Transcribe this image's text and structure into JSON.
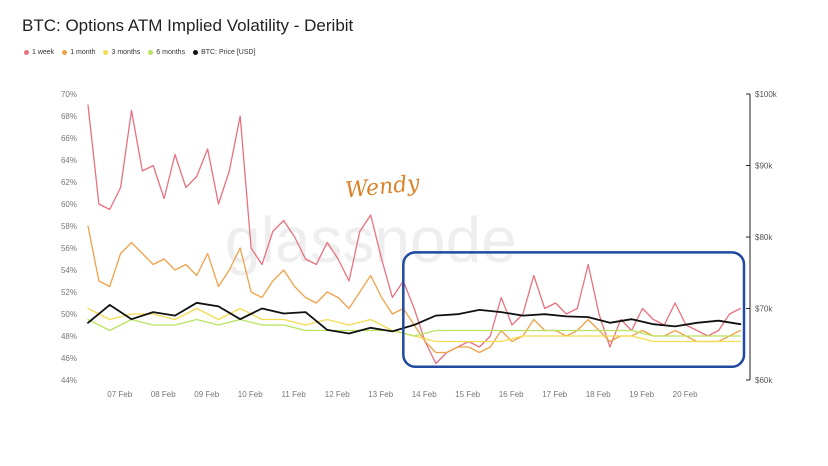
{
  "title": "BTC: Options ATM Implied Volatility - Deribit",
  "watermark": "glassnode",
  "signature": "Wendy",
  "legend": [
    {
      "label": "1 week",
      "color": "#e8717f"
    },
    {
      "label": "1 month",
      "color": "#f0a24b"
    },
    {
      "label": "3 months",
      "color": "#f2dc52"
    },
    {
      "label": "6 months",
      "color": "#b9e35f"
    },
    {
      "label": "BTC: Price [USD]",
      "color": "#111111"
    }
  ],
  "chart_data": {
    "type": "line",
    "x_axis": {
      "type": "date",
      "min": "2024-02-06T12:00",
      "max": "2024-02-21T14:00",
      "tick_labels": [
        "07 Feb",
        "08 Feb",
        "09 Feb",
        "10 Feb",
        "11 Feb",
        "12 Feb",
        "13 Feb",
        "14 Feb",
        "15 Feb",
        "16 Feb",
        "17 Feb",
        "18 Feb",
        "19 Feb",
        "20 Feb"
      ]
    },
    "y_left": {
      "unit": "%",
      "min": 44,
      "max": 70,
      "tick_labels": [
        "44%",
        "46%",
        "48%",
        "50%",
        "52%",
        "54%",
        "56%",
        "58%",
        "60%",
        "62%",
        "64%",
        "66%",
        "68%",
        "70%"
      ]
    },
    "y_right": {
      "unit": "USD",
      "min": 60000,
      "max": 100000,
      "tick_labels": [
        "$60k",
        "$70k",
        "$80k",
        "$90k",
        "$100k"
      ]
    },
    "grid": false,
    "legend_position": "top-left",
    "annotation": {
      "type": "rectangle",
      "color": "#1f4aa0",
      "x_start": "2024-02-13T18:00",
      "x_end": "2024-02-21T14:00",
      "y_start": 45.2,
      "y_end": 55.6
    },
    "series": [
      {
        "name": "1 week",
        "axis": "left",
        "color": "#e8717f",
        "x": [
          "2024-02-06T12:00",
          "2024-02-06T18:00",
          "2024-02-07T00:00",
          "2024-02-07T06:00",
          "2024-02-07T12:00",
          "2024-02-07T18:00",
          "2024-02-08T00:00",
          "2024-02-08T06:00",
          "2024-02-08T12:00",
          "2024-02-08T18:00",
          "2024-02-09T00:00",
          "2024-02-09T06:00",
          "2024-02-09T12:00",
          "2024-02-09T18:00",
          "2024-02-10T00:00",
          "2024-02-10T06:00",
          "2024-02-10T12:00",
          "2024-02-10T18:00",
          "2024-02-11T00:00",
          "2024-02-11T06:00",
          "2024-02-11T12:00",
          "2024-02-11T18:00",
          "2024-02-12T00:00",
          "2024-02-12T06:00",
          "2024-02-12T12:00",
          "2024-02-12T18:00",
          "2024-02-13T00:00",
          "2024-02-13T06:00",
          "2024-02-13T12:00",
          "2024-02-13T18:00",
          "2024-02-14T00:00",
          "2024-02-14T06:00",
          "2024-02-14T12:00",
          "2024-02-14T18:00",
          "2024-02-15T00:00",
          "2024-02-15T06:00",
          "2024-02-15T12:00",
          "2024-02-15T18:00",
          "2024-02-16T00:00",
          "2024-02-16T06:00",
          "2024-02-16T12:00",
          "2024-02-16T18:00",
          "2024-02-17T00:00",
          "2024-02-17T06:00",
          "2024-02-17T12:00",
          "2024-02-17T18:00",
          "2024-02-18T00:00",
          "2024-02-18T06:00",
          "2024-02-18T12:00",
          "2024-02-18T18:00",
          "2024-02-19T00:00",
          "2024-02-19T06:00",
          "2024-02-19T12:00",
          "2024-02-19T18:00",
          "2024-02-20T00:00",
          "2024-02-20T06:00",
          "2024-02-20T12:00",
          "2024-02-20T18:00",
          "2024-02-21T00:00",
          "2024-02-21T06:00",
          "2024-02-21T12:00"
        ],
        "values": [
          69.0,
          60.0,
          59.5,
          61.5,
          68.5,
          63.0,
          63.5,
          60.5,
          64.5,
          61.5,
          62.5,
          65.0,
          60.0,
          63.0,
          68.0,
          56.0,
          54.5,
          57.5,
          58.5,
          57.0,
          55.0,
          54.5,
          56.5,
          55.0,
          53.0,
          57.5,
          59.0,
          55.0,
          51.5,
          53.0,
          50.5,
          47.5,
          45.5,
          46.5,
          47.0,
          47.5,
          47.0,
          48.0,
          51.5,
          49.0,
          50.0,
          53.5,
          50.5,
          51.0,
          50.0,
          50.5,
          54.5,
          50.0,
          47.0,
          49.5,
          48.5,
          50.5,
          49.5,
          49.0,
          51.0,
          49.0,
          48.5,
          48.0,
          48.5,
          50.0,
          50.5
        ]
      },
      {
        "name": "1 month",
        "axis": "left",
        "color": "#f0a24b",
        "x": [
          "2024-02-06T12:00",
          "2024-02-06T18:00",
          "2024-02-07T00:00",
          "2024-02-07T06:00",
          "2024-02-07T12:00",
          "2024-02-07T18:00",
          "2024-02-08T00:00",
          "2024-02-08T06:00",
          "2024-02-08T12:00",
          "2024-02-08T18:00",
          "2024-02-09T00:00",
          "2024-02-09T06:00",
          "2024-02-09T12:00",
          "2024-02-09T18:00",
          "2024-02-10T00:00",
          "2024-02-10T06:00",
          "2024-02-10T12:00",
          "2024-02-10T18:00",
          "2024-02-11T00:00",
          "2024-02-11T06:00",
          "2024-02-11T12:00",
          "2024-02-11T18:00",
          "2024-02-12T00:00",
          "2024-02-12T06:00",
          "2024-02-12T12:00",
          "2024-02-12T18:00",
          "2024-02-13T00:00",
          "2024-02-13T06:00",
          "2024-02-13T12:00",
          "2024-02-13T18:00",
          "2024-02-14T00:00",
          "2024-02-14T06:00",
          "2024-02-14T12:00",
          "2024-02-14T18:00",
          "2024-02-15T00:00",
          "2024-02-15T06:00",
          "2024-02-15T12:00",
          "2024-02-15T18:00",
          "2024-02-16T00:00",
          "2024-02-16T06:00",
          "2024-02-16T12:00",
          "2024-02-16T18:00",
          "2024-02-17T00:00",
          "2024-02-17T06:00",
          "2024-02-17T12:00",
          "2024-02-17T18:00",
          "2024-02-18T00:00",
          "2024-02-18T06:00",
          "2024-02-18T12:00",
          "2024-02-18T18:00",
          "2024-02-19T00:00",
          "2024-02-19T06:00",
          "2024-02-19T12:00",
          "2024-02-19T18:00",
          "2024-02-20T00:00",
          "2024-02-20T06:00",
          "2024-02-20T12:00",
          "2024-02-20T18:00",
          "2024-02-21T00:00",
          "2024-02-21T06:00",
          "2024-02-21T12:00"
        ],
        "values": [
          58.0,
          53.0,
          52.5,
          55.5,
          56.5,
          55.5,
          54.5,
          55.0,
          54.0,
          54.5,
          53.5,
          55.5,
          52.5,
          54.0,
          56.0,
          52.0,
          51.5,
          53.0,
          54.0,
          52.5,
          51.5,
          51.0,
          52.0,
          51.5,
          50.5,
          52.0,
          53.5,
          51.5,
          50.0,
          50.5,
          49.0,
          47.5,
          46.5,
          46.5,
          47.0,
          47.0,
          46.5,
          47.0,
          48.5,
          47.5,
          48.0,
          49.5,
          48.5,
          48.5,
          48.0,
          48.5,
          49.5,
          48.5,
          47.5,
          48.0,
          48.0,
          48.5,
          48.0,
          48.0,
          48.5,
          48.0,
          47.5,
          47.5,
          47.5,
          48.0,
          48.5
        ]
      },
      {
        "name": "3 months",
        "axis": "left",
        "color": "#f2dc52",
        "x": [
          "2024-02-06T12:00",
          "2024-02-07T00:00",
          "2024-02-07T12:00",
          "2024-02-08T00:00",
          "2024-02-08T12:00",
          "2024-02-09T00:00",
          "2024-02-09T12:00",
          "2024-02-10T00:00",
          "2024-02-10T12:00",
          "2024-02-11T00:00",
          "2024-02-11T12:00",
          "2024-02-12T00:00",
          "2024-02-12T12:00",
          "2024-02-13T00:00",
          "2024-02-13T12:00",
          "2024-02-14T00:00",
          "2024-02-14T12:00",
          "2024-02-15T00:00",
          "2024-02-15T12:00",
          "2024-02-16T00:00",
          "2024-02-16T12:00",
          "2024-02-17T00:00",
          "2024-02-17T12:00",
          "2024-02-18T00:00",
          "2024-02-18T12:00",
          "2024-02-19T00:00",
          "2024-02-19T12:00",
          "2024-02-20T00:00",
          "2024-02-20T12:00",
          "2024-02-21T00:00",
          "2024-02-21T12:00"
        ],
        "values": [
          50.5,
          49.5,
          50.0,
          50.0,
          49.5,
          50.5,
          49.5,
          50.5,
          49.5,
          49.5,
          49.0,
          49.5,
          49.0,
          49.5,
          48.5,
          48.0,
          47.5,
          47.5,
          47.5,
          47.5,
          48.0,
          48.0,
          48.0,
          48.0,
          48.0,
          48.0,
          47.5,
          47.5,
          47.5,
          47.5,
          47.5
        ]
      },
      {
        "name": "6 months",
        "axis": "left",
        "color": "#b9e35f",
        "x": [
          "2024-02-06T12:00",
          "2024-02-07T00:00",
          "2024-02-07T12:00",
          "2024-02-08T00:00",
          "2024-02-08T12:00",
          "2024-02-09T00:00",
          "2024-02-09T12:00",
          "2024-02-10T00:00",
          "2024-02-10T12:00",
          "2024-02-11T00:00",
          "2024-02-11T12:00",
          "2024-02-12T00:00",
          "2024-02-12T12:00",
          "2024-02-13T00:00",
          "2024-02-13T12:00",
          "2024-02-14T00:00",
          "2024-02-14T12:00",
          "2024-02-15T00:00",
          "2024-02-15T12:00",
          "2024-02-16T00:00",
          "2024-02-16T12:00",
          "2024-02-17T00:00",
          "2024-02-17T12:00",
          "2024-02-18T00:00",
          "2024-02-18T12:00",
          "2024-02-19T00:00",
          "2024-02-19T12:00",
          "2024-02-20T00:00",
          "2024-02-20T12:00",
          "2024-02-21T00:00",
          "2024-02-21T12:00"
        ],
        "values": [
          49.5,
          48.5,
          49.5,
          49.0,
          49.0,
          49.5,
          49.0,
          49.5,
          49.0,
          49.0,
          48.5,
          48.5,
          48.5,
          48.5,
          48.5,
          48.0,
          48.5,
          48.5,
          48.5,
          48.5,
          48.5,
          48.5,
          48.5,
          48.5,
          48.5,
          48.5,
          48.0,
          48.0,
          48.0,
          48.0,
          48.0
        ]
      },
      {
        "name": "BTC: Price [USD]",
        "axis": "right",
        "color": "#111111",
        "x": [
          "2024-02-06T12:00",
          "2024-02-07T00:00",
          "2024-02-07T12:00",
          "2024-02-08T00:00",
          "2024-02-08T12:00",
          "2024-02-09T00:00",
          "2024-02-09T12:00",
          "2024-02-10T00:00",
          "2024-02-10T12:00",
          "2024-02-11T00:00",
          "2024-02-11T12:00",
          "2024-02-12T00:00",
          "2024-02-12T12:00",
          "2024-02-13T00:00",
          "2024-02-13T12:00",
          "2024-02-14T00:00",
          "2024-02-14T12:00",
          "2024-02-15T00:00",
          "2024-02-15T12:00",
          "2024-02-16T00:00",
          "2024-02-16T12:00",
          "2024-02-17T00:00",
          "2024-02-17T12:00",
          "2024-02-18T00:00",
          "2024-02-18T12:00",
          "2024-02-19T00:00",
          "2024-02-19T12:00",
          "2024-02-20T00:00",
          "2024-02-20T12:00",
          "2024-02-21T00:00",
          "2024-02-21T12:00"
        ],
        "values": [
          68000,
          70500,
          68500,
          69500,
          69000,
          70800,
          70300,
          68500,
          70000,
          69300,
          69500,
          67000,
          66500,
          67300,
          66800,
          67700,
          69000,
          69200,
          69800,
          69500,
          69000,
          69200,
          68900,
          68800,
          68000,
          68500,
          67800,
          67500,
          68000,
          68300,
          67800
        ]
      }
    ]
  }
}
